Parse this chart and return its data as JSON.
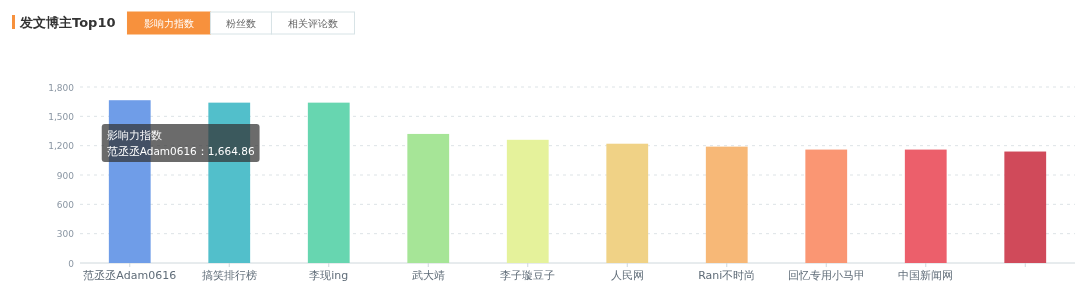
{
  "chart_data": {
    "type": "bar",
    "title": "发文博主Top10",
    "categories": [
      "范丞丞Adam0616",
      "搞笑排行榜",
      "李现ing",
      "武大靖",
      "李子璇豆子",
      "人民网",
      "Rani不时尚",
      "回忆专用小马甲",
      "中国新闻网",
      null
    ],
    "values": [
      1664.86,
      1640,
      1640,
      1320,
      1260,
      1220,
      1190,
      1160,
      1160,
      1140
    ],
    "colors": [
      "#6f9de8",
      "#52bfcb",
      "#67d6b0",
      "#a6e597",
      "#e5f29b",
      "#f0d286",
      "#f7b877",
      "#fa9673",
      "#ec5f6b",
      "#d04a5a"
    ],
    "ylim": [
      0,
      1800
    ],
    "yticks": [
      0,
      {
        "value": 300,
        "label": "300"
      },
      600,
      900,
      {
        "value": 1200,
        "label": "1,200"
      },
      {
        "value": 1500,
        "label": "1,500"
      },
      {
        "value": 1800,
        "label": "1,800"
      }
    ],
    "grid": "y",
    "annotations": [
      "影响力指数",
      "粉丝数",
      "相关评论数",
      "影响力指数",
      "范丞丞Adam0616：1,664.86"
    ]
  }
}
